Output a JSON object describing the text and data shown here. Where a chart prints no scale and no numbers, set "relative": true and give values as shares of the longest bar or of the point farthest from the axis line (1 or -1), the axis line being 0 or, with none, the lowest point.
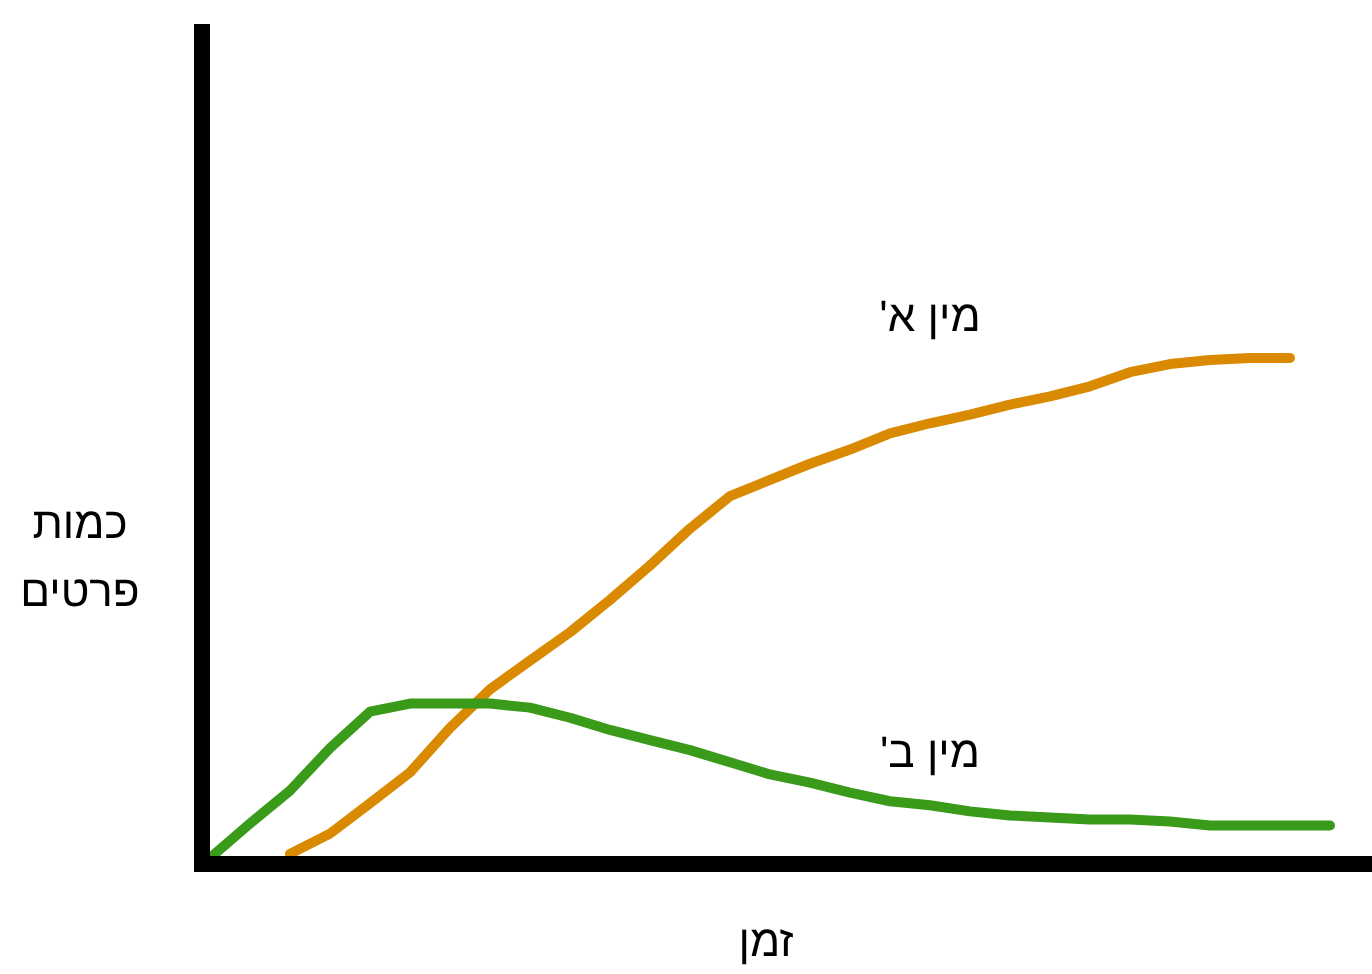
{
  "chart_data": {
    "type": "line",
    "relative": true,
    "xlabel": "זמן",
    "ylabel": "כמות פרטים",
    "categories": [
      null,
      null,
      null,
      null,
      null,
      null,
      null,
      null,
      null,
      null,
      null,
      null,
      null,
      null,
      null,
      null,
      null,
      null,
      null,
      null,
      null,
      null,
      null,
      null,
      null,
      null,
      null,
      null,
      null
    ],
    "series": [
      {
        "name": "מין א'",
        "color": "#d98a00",
        "values": [
          null,
          null,
          0.02,
          0.06,
          0.12,
          0.181,
          0.269,
          0.345,
          0.402,
          0.458,
          0.522,
          0.59,
          0.663,
          0.727,
          0.759,
          0.791,
          0.819,
          0.851,
          0.871,
          0.888,
          0.908,
          0.924,
          0.944,
          0.972,
          0.988,
          0.996,
          1.0,
          1.0,
          null
        ]
      },
      {
        "name": "מין ב'",
        "color": "#3a9a1a",
        "values": [
          0.012,
          0.08,
          0.145,
          0.229,
          0.301,
          0.317,
          0.317,
          0.317,
          0.309,
          0.289,
          0.265,
          0.245,
          0.225,
          0.201,
          0.177,
          0.161,
          0.141,
          0.124,
          0.116,
          0.104,
          0.096,
          0.092,
          0.088,
          0.088,
          0.084,
          0.076,
          0.076,
          0.076,
          0.076
        ]
      }
    ]
  }
}
